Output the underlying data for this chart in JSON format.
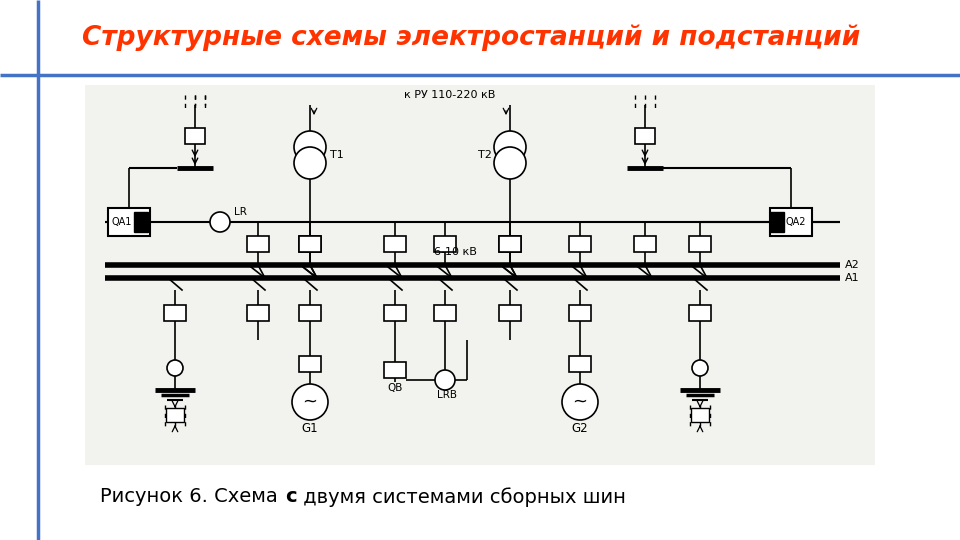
{
  "title": "Структурные схемы электростанций и подстанций",
  "title_color": "#FF3300",
  "title_fontsize": 19,
  "caption_prefix": "Рисунок 6. Схема ",
  "caption_bold": "с",
  "caption_suffix": " двумя системами сборных шин",
  "caption_fontsize": 14,
  "bg_color": "#FFFFFF",
  "slide_bg": "#F5F5F0",
  "left_line_color": "#4472C4",
  "top_line_color": "#4472C4",
  "label_kru": "к РУ 110-220 кВ",
  "label_610": "6-10 кВ",
  "label_A2": "A2",
  "label_A1": "A1",
  "label_T1": "T1",
  "label_T2": "T2",
  "label_QA1": "QA1",
  "label_QA2": "QA2",
  "label_LR": "LR",
  "label_QB": "QB",
  "label_LRB": "LRB",
  "label_G1": "G1",
  "label_G2": "G2"
}
